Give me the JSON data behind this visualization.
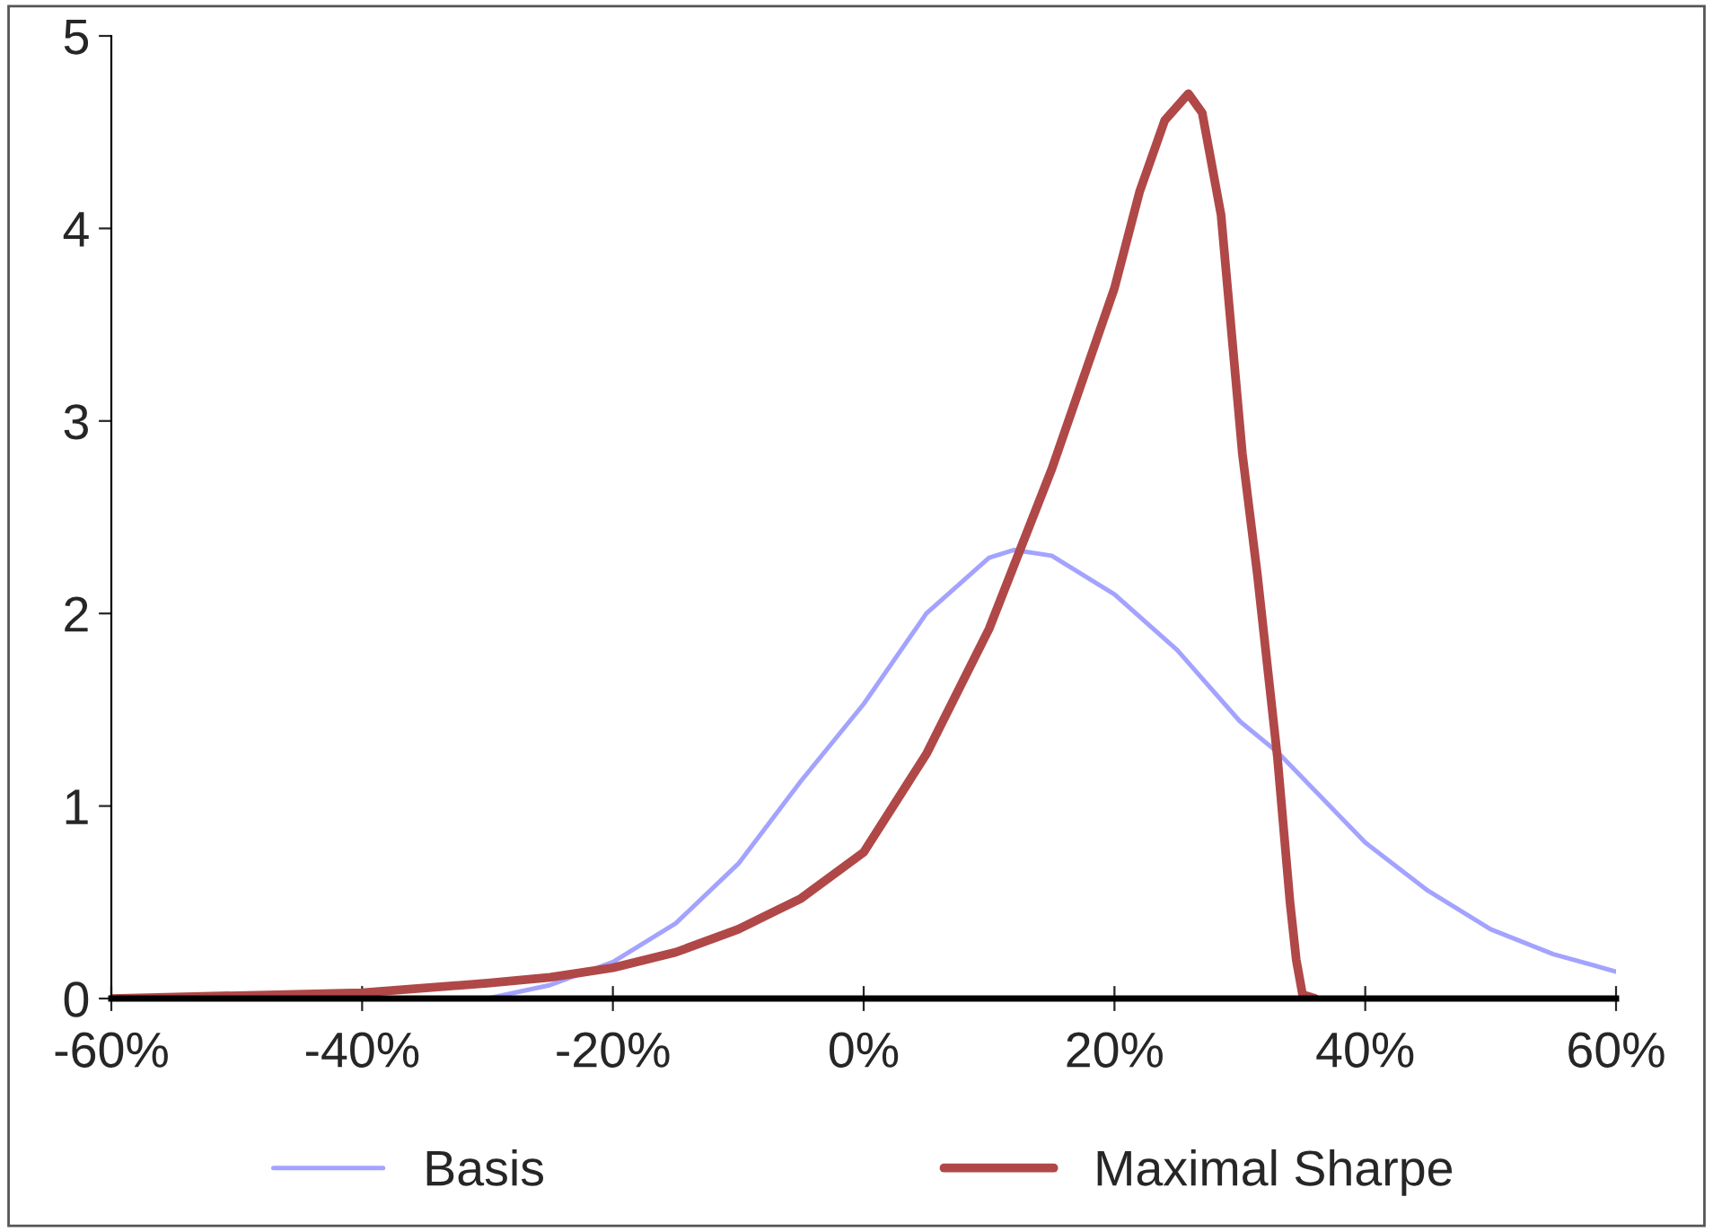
{
  "chart_data": {
    "type": "line",
    "xlim": [
      -60,
      60
    ],
    "xticks": [
      {
        "value": -60,
        "label": "-60%"
      },
      {
        "value": -40,
        "label": "-40%"
      },
      {
        "value": -20,
        "label": "-20%"
      },
      {
        "value": 0,
        "label": "0%"
      },
      {
        "value": 20,
        "label": "20%"
      },
      {
        "value": 40,
        "label": "40%"
      },
      {
        "value": 60,
        "label": "60%"
      }
    ],
    "ylim": [
      0,
      5
    ],
    "yticks": [
      0,
      1,
      2,
      3,
      4,
      5
    ],
    "grid": false,
    "legend": "bottom",
    "marker": "none",
    "line_style": "solid",
    "series": [
      {
        "name": "Basis",
        "color": "#a3a3ff",
        "x": [
          -60,
          -40,
          -30,
          -25,
          -20,
          -15,
          -10,
          -5,
          0,
          5,
          10,
          12,
          15,
          20,
          25,
          30,
          33,
          40,
          45,
          50,
          55,
          60
        ],
        "values": [
          0,
          0,
          0,
          0.07,
          0.19,
          0.39,
          0.7,
          1.13,
          1.53,
          2.0,
          2.29,
          2.33,
          2.3,
          2.1,
          1.81,
          1.44,
          1.28,
          0.81,
          0.56,
          0.36,
          0.23,
          0.14
        ]
      },
      {
        "name": "Maximal Sharpe",
        "color": "#b04848",
        "x": [
          -60,
          -40,
          -30,
          -25,
          -20,
          -15,
          -10,
          -5,
          0,
          5,
          10,
          15,
          20,
          22,
          24,
          25.9,
          27,
          28.5,
          30.2,
          31.4,
          33,
          34,
          34.5,
          35,
          36
        ],
        "values": [
          0,
          0.03,
          0.08,
          0.11,
          0.16,
          0.24,
          0.36,
          0.52,
          0.76,
          1.27,
          1.92,
          2.75,
          3.69,
          4.19,
          4.56,
          4.7,
          4.6,
          4.07,
          2.83,
          2.2,
          1.25,
          0.5,
          0.2,
          0.02,
          0
        ]
      }
    ]
  }
}
